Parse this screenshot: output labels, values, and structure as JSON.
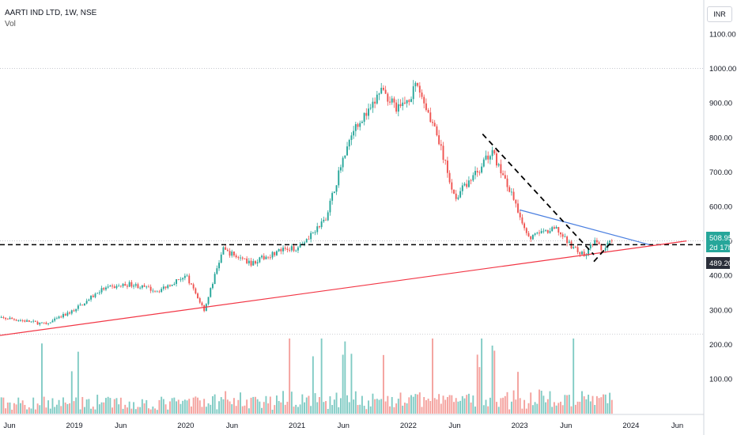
{
  "header": {
    "symbol_line": "AARTI IND LTD, 1W, NSE",
    "volume_label": "Vol",
    "currency": "INR"
  },
  "colors": {
    "up": "#26a69a",
    "down": "#ef5350",
    "up_vol": "#80cbc4",
    "down_vol": "#f4a09c",
    "trend_red": "#f23645",
    "trend_blue": "#4a7fe0",
    "price_tag_green": "#26a69a",
    "price_tag_dark": "#2a2e39"
  },
  "chart_data": {
    "type": "candlestick",
    "y_axis": {
      "ticks": [
        "1100.00",
        "1000.00",
        "900.00",
        "800.00",
        "700.00",
        "600.00",
        "500.00",
        "400.00",
        "300.00",
        "200.00",
        "100.00"
      ],
      "price_range": [
        200,
        1100
      ]
    },
    "x_axis": {
      "ticks": [
        "Jun",
        "2019",
        "Jun",
        "2020",
        "Jun",
        "2021",
        "Jun",
        "2022",
        "Jun",
        "2023",
        "Jun",
        "2024",
        "Jun"
      ]
    },
    "last_price": {
      "value": "508.95",
      "countdown": "2d 17h"
    },
    "level_price": {
      "value": "489.20"
    },
    "volume_axis": {
      "ticks": [
        "200.00",
        "100.00"
      ]
    },
    "price_anchors": [
      [
        "2018-06",
        275
      ],
      [
        "2018-10",
        258
      ],
      [
        "2019-01",
        300
      ],
      [
        "2019-04",
        360
      ],
      [
        "2019-07",
        375
      ],
      [
        "2019-10",
        355
      ],
      [
        "2020-01",
        400
      ],
      [
        "2020-03",
        300
      ],
      [
        "2020-05",
        475
      ],
      [
        "2020-08",
        435
      ],
      [
        "2020-11",
        470
      ],
      [
        "2021-01",
        480
      ],
      [
        "2021-04",
        560
      ],
      [
        "2021-07",
        830
      ],
      [
        "2021-09",
        880
      ],
      [
        "2021-10",
        940
      ],
      [
        "2021-12",
        880
      ],
      [
        "2022-02",
        950
      ],
      [
        "2022-04",
        815
      ],
      [
        "2022-06",
        625
      ],
      [
        "2022-09",
        720
      ],
      [
        "2022-10",
        760
      ],
      [
        "2022-12",
        640
      ],
      [
        "2023-02",
        510
      ],
      [
        "2023-05",
        535
      ],
      [
        "2023-06",
        500
      ],
      [
        "2023-08",
        455
      ],
      [
        "2023-09",
        500
      ],
      [
        "2023-10",
        470
      ],
      [
        "2023-11",
        508
      ]
    ],
    "grid_levels": [
      1000,
      500,
      230
    ],
    "support_level": 489,
    "trendlines": [
      {
        "type": "rising-support",
        "from": [
          "2017-10",
          200
        ],
        "to": [
          "2024-07",
          500
        ]
      },
      {
        "type": "falling-resistance",
        "from": [
          "2023-01",
          590
        ],
        "to": [
          "2024-03",
          489
        ]
      },
      {
        "type": "falling-channel-top",
        "from": [
          "2022-09",
          810
        ],
        "to": [
          "2023-09",
          460
        ]
      },
      {
        "type": "falling-channel-bottom",
        "from": [
          "2023-09",
          440
        ],
        "to": [
          "2023-11",
          500
        ]
      }
    ]
  }
}
